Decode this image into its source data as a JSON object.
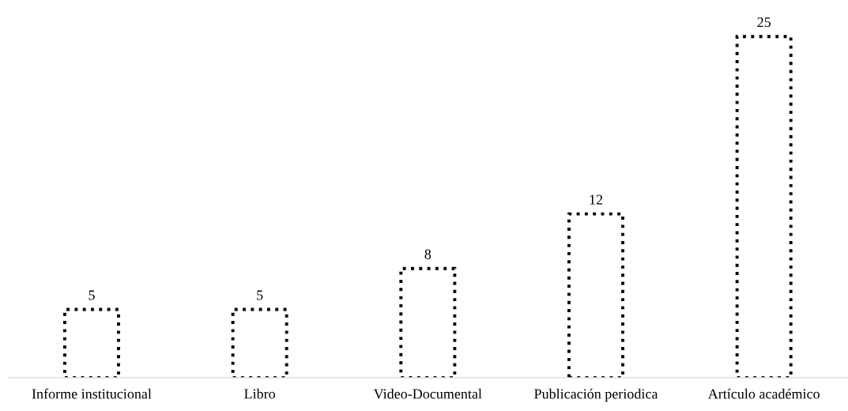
{
  "chart_data": {
    "type": "bar",
    "categories": [
      "Informe institucional",
      "Libro",
      "Video-Documental",
      "Publicación periodica",
      "Artículo académico"
    ],
    "values": [
      5,
      5,
      8,
      12,
      25
    ],
    "color": "#ffffff",
    "line_style": "dotted",
    "data_labels": true,
    "grid": false,
    "legend": false,
    "tick_labels": "x"
  }
}
